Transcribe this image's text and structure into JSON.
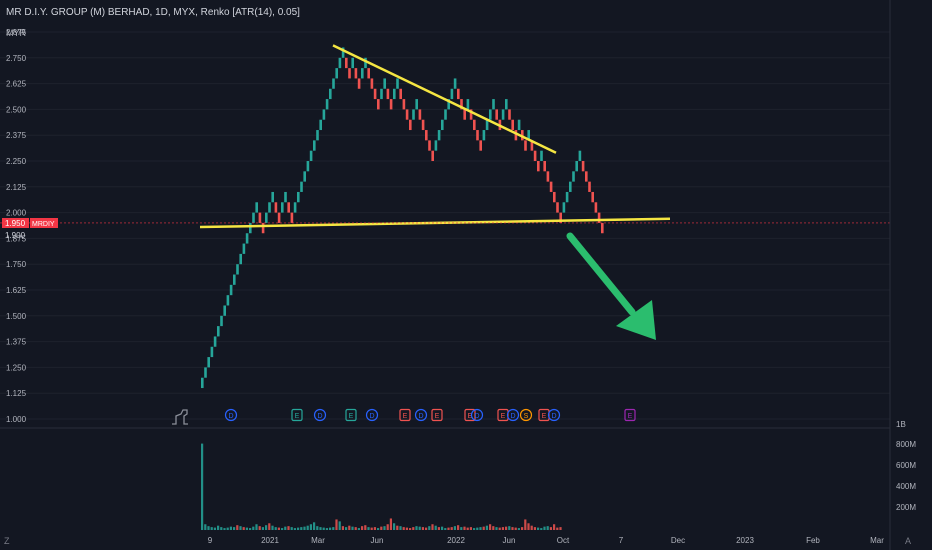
{
  "header": {
    "title": "MR D.I.Y. GROUP (M) BERHAD, 1D, MYX, Renko [ATR(14), 0.05]",
    "currency": "MYR"
  },
  "price_axis": {
    "ticks": [
      "2.875",
      "2.750",
      "2.625",
      "2.500",
      "2.375",
      "2.250",
      "2.125",
      "2.000",
      "1.875",
      "1.750",
      "1.625",
      "1.500",
      "1.375",
      "1.250",
      "1.125",
      "1.000"
    ],
    "last_price_label": "1.950",
    "symbol_label": "MRDIY",
    "line_label": "1.900"
  },
  "volume_axis": {
    "ticks": [
      "1B",
      "800M",
      "600M",
      "400M",
      "200M"
    ]
  },
  "time_axis": {
    "labels": [
      "9",
      "2021",
      "Mar",
      "Jun",
      "2022",
      "Jun",
      "Oct",
      "7",
      "Dec",
      "2023",
      "Feb",
      "Mar"
    ]
  },
  "events": [
    "D",
    "E",
    "D",
    "E",
    "D",
    "E",
    "D",
    "E",
    "D",
    "E",
    "D",
    "E",
    "D",
    "S",
    "E",
    "D",
    "E"
  ],
  "footer": {
    "left_icon": "Z",
    "right_icon": "A"
  },
  "colors": {
    "background": "#131722",
    "up": "#26a69a",
    "down": "#ef5350",
    "trendline": "#f5e642",
    "arrow": "#2bbd6e",
    "last_price": "#f23645"
  },
  "chart_data": {
    "type": "renko",
    "brick_size": 0.05,
    "bricks": [
      {
        "low": 1.15,
        "dir": "up"
      },
      {
        "low": 1.2,
        "dir": "up"
      },
      {
        "low": 1.25,
        "dir": "up"
      },
      {
        "low": 1.3,
        "dir": "up"
      },
      {
        "low": 1.35,
        "dir": "up"
      },
      {
        "low": 1.4,
        "dir": "up"
      },
      {
        "low": 1.45,
        "dir": "up"
      },
      {
        "low": 1.5,
        "dir": "up"
      },
      {
        "low": 1.55,
        "dir": "up"
      },
      {
        "low": 1.6,
        "dir": "up"
      },
      {
        "low": 1.65,
        "dir": "up"
      },
      {
        "low": 1.7,
        "dir": "up"
      },
      {
        "low": 1.75,
        "dir": "up"
      },
      {
        "low": 1.8,
        "dir": "up"
      },
      {
        "low": 1.85,
        "dir": "up"
      },
      {
        "low": 1.9,
        "dir": "up"
      },
      {
        "low": 1.95,
        "dir": "up"
      },
      {
        "low": 2.0,
        "dir": "up"
      },
      {
        "low": 1.95,
        "dir": "down"
      },
      {
        "low": 1.9,
        "dir": "down"
      },
      {
        "low": 1.95,
        "dir": "up"
      },
      {
        "low": 2.0,
        "dir": "up"
      },
      {
        "low": 2.05,
        "dir": "up"
      },
      {
        "low": 2.0,
        "dir": "down"
      },
      {
        "low": 1.95,
        "dir": "down"
      },
      {
        "low": 2.0,
        "dir": "up"
      },
      {
        "low": 2.05,
        "dir": "up"
      },
      {
        "low": 2.0,
        "dir": "down"
      },
      {
        "low": 1.95,
        "dir": "down"
      },
      {
        "low": 2.0,
        "dir": "up"
      },
      {
        "low": 2.05,
        "dir": "up"
      },
      {
        "low": 2.1,
        "dir": "up"
      },
      {
        "low": 2.15,
        "dir": "up"
      },
      {
        "low": 2.2,
        "dir": "up"
      },
      {
        "low": 2.25,
        "dir": "up"
      },
      {
        "low": 2.3,
        "dir": "up"
      },
      {
        "low": 2.35,
        "dir": "up"
      },
      {
        "low": 2.4,
        "dir": "up"
      },
      {
        "low": 2.45,
        "dir": "up"
      },
      {
        "low": 2.5,
        "dir": "up"
      },
      {
        "low": 2.55,
        "dir": "up"
      },
      {
        "low": 2.6,
        "dir": "up"
      },
      {
        "low": 2.65,
        "dir": "up"
      },
      {
        "low": 2.7,
        "dir": "up"
      },
      {
        "low": 2.75,
        "dir": "up"
      },
      {
        "low": 2.7,
        "dir": "down"
      },
      {
        "low": 2.65,
        "dir": "down"
      },
      {
        "low": 2.7,
        "dir": "up"
      },
      {
        "low": 2.65,
        "dir": "down"
      },
      {
        "low": 2.6,
        "dir": "down"
      },
      {
        "low": 2.65,
        "dir": "up"
      },
      {
        "low": 2.7,
        "dir": "up"
      },
      {
        "low": 2.65,
        "dir": "down"
      },
      {
        "low": 2.6,
        "dir": "down"
      },
      {
        "low": 2.55,
        "dir": "down"
      },
      {
        "low": 2.5,
        "dir": "down"
      },
      {
        "low": 2.55,
        "dir": "up"
      },
      {
        "low": 2.6,
        "dir": "up"
      },
      {
        "low": 2.55,
        "dir": "down"
      },
      {
        "low": 2.5,
        "dir": "down"
      },
      {
        "low": 2.55,
        "dir": "up"
      },
      {
        "low": 2.6,
        "dir": "up"
      },
      {
        "low": 2.55,
        "dir": "down"
      },
      {
        "low": 2.5,
        "dir": "down"
      },
      {
        "low": 2.45,
        "dir": "down"
      },
      {
        "low": 2.4,
        "dir": "down"
      },
      {
        "low": 2.45,
        "dir": "up"
      },
      {
        "low": 2.5,
        "dir": "up"
      },
      {
        "low": 2.45,
        "dir": "down"
      },
      {
        "low": 2.4,
        "dir": "down"
      },
      {
        "low": 2.35,
        "dir": "down"
      },
      {
        "low": 2.3,
        "dir": "down"
      },
      {
        "low": 2.25,
        "dir": "down"
      },
      {
        "low": 2.3,
        "dir": "up"
      },
      {
        "low": 2.35,
        "dir": "up"
      },
      {
        "low": 2.4,
        "dir": "up"
      },
      {
        "low": 2.45,
        "dir": "up"
      },
      {
        "low": 2.5,
        "dir": "up"
      },
      {
        "low": 2.55,
        "dir": "up"
      },
      {
        "low": 2.6,
        "dir": "up"
      },
      {
        "low": 2.55,
        "dir": "down"
      },
      {
        "low": 2.5,
        "dir": "down"
      },
      {
        "low": 2.45,
        "dir": "down"
      },
      {
        "low": 2.5,
        "dir": "up"
      },
      {
        "low": 2.45,
        "dir": "down"
      },
      {
        "low": 2.4,
        "dir": "down"
      },
      {
        "low": 2.35,
        "dir": "down"
      },
      {
        "low": 2.3,
        "dir": "down"
      },
      {
        "low": 2.35,
        "dir": "up"
      },
      {
        "low": 2.4,
        "dir": "up"
      },
      {
        "low": 2.45,
        "dir": "up"
      },
      {
        "low": 2.5,
        "dir": "up"
      },
      {
        "low": 2.45,
        "dir": "down"
      },
      {
        "low": 2.4,
        "dir": "down"
      },
      {
        "low": 2.45,
        "dir": "up"
      },
      {
        "low": 2.5,
        "dir": "up"
      },
      {
        "low": 2.45,
        "dir": "down"
      },
      {
        "low": 2.4,
        "dir": "down"
      },
      {
        "low": 2.35,
        "dir": "down"
      },
      {
        "low": 2.4,
        "dir": "up"
      },
      {
        "low": 2.35,
        "dir": "down"
      },
      {
        "low": 2.3,
        "dir": "down"
      },
      {
        "low": 2.35,
        "dir": "up"
      },
      {
        "low": 2.3,
        "dir": "down"
      },
      {
        "low": 2.25,
        "dir": "down"
      },
      {
        "low": 2.2,
        "dir": "down"
      },
      {
        "low": 2.25,
        "dir": "up"
      },
      {
        "low": 2.2,
        "dir": "down"
      },
      {
        "low": 2.15,
        "dir": "down"
      },
      {
        "low": 2.1,
        "dir": "down"
      },
      {
        "low": 2.05,
        "dir": "down"
      },
      {
        "low": 2.0,
        "dir": "down"
      },
      {
        "low": 1.95,
        "dir": "down"
      },
      {
        "low": 2.0,
        "dir": "up"
      },
      {
        "low": 2.05,
        "dir": "up"
      },
      {
        "low": 2.1,
        "dir": "up"
      },
      {
        "low": 2.15,
        "dir": "up"
      },
      {
        "low": 2.2,
        "dir": "up"
      },
      {
        "low": 2.25,
        "dir": "up"
      },
      {
        "low": 2.2,
        "dir": "down"
      },
      {
        "low": 2.15,
        "dir": "down"
      },
      {
        "low": 2.1,
        "dir": "down"
      },
      {
        "low": 2.05,
        "dir": "down"
      },
      {
        "low": 2.0,
        "dir": "down"
      },
      {
        "low": 1.95,
        "dir": "down"
      },
      {
        "low": 1.9,
        "dir": "down"
      }
    ],
    "volume": [
      900,
      60,
      40,
      30,
      25,
      45,
      30,
      20,
      25,
      35,
      30,
      50,
      40,
      30,
      25,
      20,
      35,
      60,
      40,
      30,
      50,
      70,
      45,
      30,
      25,
      20,
      35,
      40,
      30,
      20,
      25,
      30,
      35,
      45,
      60,
      80,
      40,
      30,
      25,
      20,
      25,
      30,
      110,
      90,
      40,
      30,
      45,
      35,
      30,
      20,
      40,
      50,
      30,
      25,
      30,
      20,
      35,
      40,
      60,
      120,
      70,
      45,
      40,
      30,
      25,
      20,
      30,
      40,
      35,
      30,
      25,
      40,
      60,
      45,
      30,
      35,
      20,
      25,
      30,
      40,
      50,
      30,
      35,
      25,
      30,
      20,
      25,
      30,
      35,
      45,
      60,
      40,
      30,
      25,
      30,
      35,
      40,
      30,
      25,
      20,
      30,
      110,
      70,
      45,
      30,
      25,
      20,
      35,
      40,
      30,
      60,
      25,
      30
    ],
    "volume_up": [
      true,
      true,
      true,
      true,
      true,
      true,
      true,
      true,
      true,
      true,
      true,
      false,
      true,
      false,
      true,
      true,
      true,
      true,
      false,
      true,
      true,
      false,
      true,
      true,
      false,
      true,
      true,
      false,
      true,
      true,
      true,
      true,
      true,
      true,
      true,
      true,
      true,
      true,
      true,
      true,
      true,
      true,
      false,
      true,
      false,
      true,
      false,
      true,
      false,
      true,
      false,
      false,
      true,
      false,
      false,
      true,
      false,
      true,
      false,
      false,
      true,
      false,
      true,
      false,
      false,
      false,
      false,
      true,
      true,
      false,
      false,
      true,
      false,
      true,
      false,
      true,
      true,
      false,
      false,
      true,
      false,
      true,
      false,
      false,
      false,
      true,
      true,
      true,
      false,
      true,
      false,
      false,
      true,
      false,
      false,
      false,
      true,
      false,
      false,
      true,
      false,
      false,
      false,
      false,
      false,
      true,
      true,
      true,
      true,
      false,
      false,
      false,
      false
    ],
    "trendlines": [
      {
        "name": "resistance",
        "from": [
          2.81
        ],
        "to": [
          2.29
        ]
      },
      {
        "name": "neckline",
        "from": [
          1.93
        ],
        "to": [
          1.97
        ]
      }
    ],
    "ylim": [
      0.98,
      2.93
    ]
  }
}
